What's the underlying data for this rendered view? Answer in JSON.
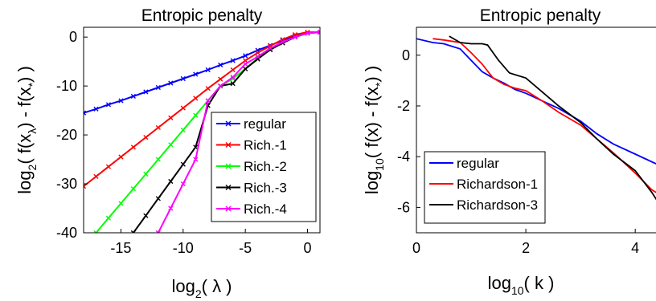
{
  "chart_data": [
    {
      "type": "line",
      "title": "Entropic penalty",
      "xlabel": {
        "base": "log",
        "sub": "2",
        "rest": "( λ )"
      },
      "ylabel": {
        "base": "log",
        "sub": "2",
        "pre": "( f(x",
        "sub2": "λ",
        "mid": ") - f(x",
        "sub3": "*",
        "post": ") )"
      },
      "xlim": [
        -18,
        1
      ],
      "ylim": [
        -40,
        2
      ],
      "xticks": [
        -15,
        -10,
        -5,
        0
      ],
      "yticks": [
        0,
        -10,
        -20,
        -30,
        -40
      ],
      "grid": false,
      "legend_position": "center-right",
      "marker": "x",
      "series": [
        {
          "name": "regular",
          "color": "#0000ff",
          "x": [
            -18,
            -17,
            -16,
            -15,
            -14,
            -13,
            -12,
            -11,
            -10,
            -9,
            -8,
            -7,
            -6,
            -5,
            -4,
            -3,
            -2,
            -1,
            0,
            1
          ],
          "y": [
            -15.5,
            -14.7,
            -13.8,
            -13.0,
            -12.1,
            -11.2,
            -10.3,
            -9.4,
            -8.5,
            -7.6,
            -6.7,
            -5.7,
            -4.8,
            -3.8,
            -2.7,
            -1.7,
            -0.7,
            0.3,
            0.8,
            1.0
          ]
        },
        {
          "name": "Rich.-1",
          "color": "#ff0000",
          "x": [
            -18,
            -17,
            -16,
            -15,
            -14,
            -13,
            -12,
            -11,
            -10,
            -9,
            -8,
            -7,
            -6,
            -5,
            -4,
            -3,
            -2,
            -1,
            0,
            1
          ],
          "y": [
            -30.5,
            -28.5,
            -26.5,
            -24.5,
            -22.5,
            -20.5,
            -18.5,
            -16.5,
            -14.5,
            -12.5,
            -10.5,
            -8.6,
            -6.7,
            -4.8,
            -3.2,
            -1.8,
            -0.5,
            0.5,
            1.0,
            1.0
          ]
        },
        {
          "name": "Rich.-2",
          "color": "#00ff00",
          "x": [
            -17,
            -16,
            -15,
            -14,
            -13,
            -12,
            -11,
            -10,
            -9,
            -8,
            -7,
            -6,
            -5,
            -4,
            -3,
            -2,
            -1,
            0,
            1
          ],
          "y": [
            -40,
            -37,
            -34,
            -31,
            -28,
            -25,
            -22,
            -19,
            -16,
            -13,
            -10,
            -8.5,
            -6.5,
            -4.3,
            -2.5,
            -1.2,
            0,
            0.8,
            1.0
          ]
        },
        {
          "name": "Rich.-3",
          "color": "#000000",
          "x": [
            -14,
            -13,
            -12,
            -11,
            -10,
            -9,
            -8,
            -7,
            -6,
            -5,
            -4,
            -3,
            -2,
            -1,
            0,
            1
          ],
          "y": [
            -40,
            -36.5,
            -33,
            -29.5,
            -26,
            -22.5,
            -14,
            -10,
            -9.5,
            -6.5,
            -4.5,
            -2.6,
            -1.2,
            0,
            0.8,
            1.0
          ]
        },
        {
          "name": "Rich.-4",
          "color": "#ff00ff",
          "x": [
            -12,
            -11,
            -10,
            -9,
            -8,
            -7,
            -6,
            -5,
            -4,
            -3,
            -2,
            -1,
            0,
            1
          ],
          "y": [
            -40,
            -35,
            -30,
            -25,
            -13,
            -10,
            -8.2,
            -5.5,
            -4.0,
            -2.3,
            -1.0,
            0,
            0.8,
            1.0
          ]
        }
      ]
    },
    {
      "type": "line",
      "title": "Entropic penalty",
      "xlabel": {
        "base": "log",
        "sub": "10",
        "rest": "( k )"
      },
      "ylabel": {
        "base": "log",
        "sub": "10",
        "rest": "( f(x) - f(x",
        "sub2": "*",
        "post": ") )"
      },
      "xlim": [
        0,
        4.6
      ],
      "ylim": [
        -7,
        1.1
      ],
      "xticks": [
        0,
        2,
        4
      ],
      "yticks": [
        0,
        -2,
        -4,
        -6
      ],
      "grid": false,
      "legend_position": "bottom-left",
      "series": [
        {
          "name": "regular",
          "color": "#0000ff",
          "x": [
            0,
            0.3,
            0.5,
            0.8,
            1.0,
            1.2,
            1.4,
            1.6,
            1.8,
            2.0,
            2.3,
            2.6,
            3.0,
            3.3,
            3.6,
            4.0,
            4.3,
            4.6
          ],
          "y": [
            0.65,
            0.5,
            0.45,
            0.25,
            -0.2,
            -0.65,
            -0.9,
            -1.1,
            -1.35,
            -1.5,
            -1.8,
            -2.1,
            -2.6,
            -3.1,
            -3.5,
            -3.9,
            -4.2,
            -4.5
          ]
        },
        {
          "name": "Richardson-1",
          "color": "#ff0000",
          "x": [
            0.3,
            0.5,
            0.8,
            1.0,
            1.2,
            1.4,
            1.6,
            1.8,
            2.0,
            2.3,
            2.6,
            3.0,
            3.3,
            3.6,
            4.0,
            4.3,
            4.6
          ],
          "y": [
            0.65,
            0.6,
            0.5,
            0.1,
            -0.35,
            -0.9,
            -1.15,
            -1.3,
            -1.4,
            -1.8,
            -2.25,
            -2.75,
            -3.3,
            -3.85,
            -4.65,
            -5.3,
            -5.7
          ]
        },
        {
          "name": "Richardson-3",
          "color": "#000000",
          "x": [
            0.6,
            0.8,
            1.0,
            1.2,
            1.3,
            1.5,
            1.7,
            2.0,
            2.3,
            2.6,
            3.0,
            3.3,
            3.6,
            4.0,
            4.3,
            4.6
          ],
          "y": [
            0.75,
            0.5,
            0.45,
            0.45,
            0.4,
            -0.2,
            -0.7,
            -0.9,
            -1.45,
            -2.0,
            -2.65,
            -3.3,
            -3.9,
            -4.55,
            -5.4,
            -6.4
          ]
        }
      ]
    }
  ]
}
